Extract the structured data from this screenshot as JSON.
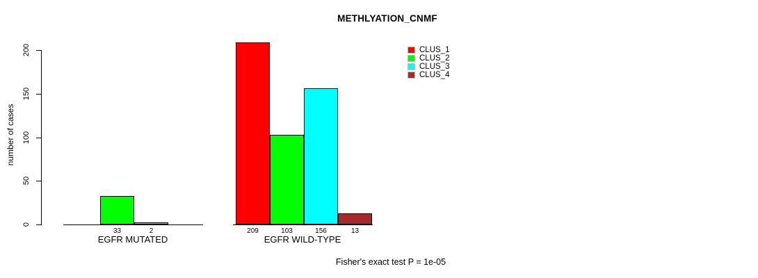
{
  "chart_data": {
    "type": "bar",
    "title": "METHLYATION_CNMF",
    "ylabel": "number of cases",
    "yticks": [
      0,
      50,
      100,
      150,
      200
    ],
    "ylim": [
      0,
      215
    ],
    "grid": false,
    "legend_position": "top-right",
    "categories": [
      "EGFR MUTATED",
      "EGFR WILD-TYPE"
    ],
    "series": [
      {
        "name": "CLUS_1",
        "color": "#ff0000",
        "values": [
          null,
          209
        ]
      },
      {
        "name": "CLUS_2",
        "color": "#00ff00",
        "values": [
          33,
          103
        ]
      },
      {
        "name": "CLUS_3",
        "color": "#00ffff",
        "values": [
          2,
          156
        ]
      },
      {
        "name": "CLUS_4",
        "color": "#a52a2a",
        "values": [
          null,
          13
        ]
      }
    ],
    "annotation": "Fisher's exact test P = 1e-05"
  }
}
